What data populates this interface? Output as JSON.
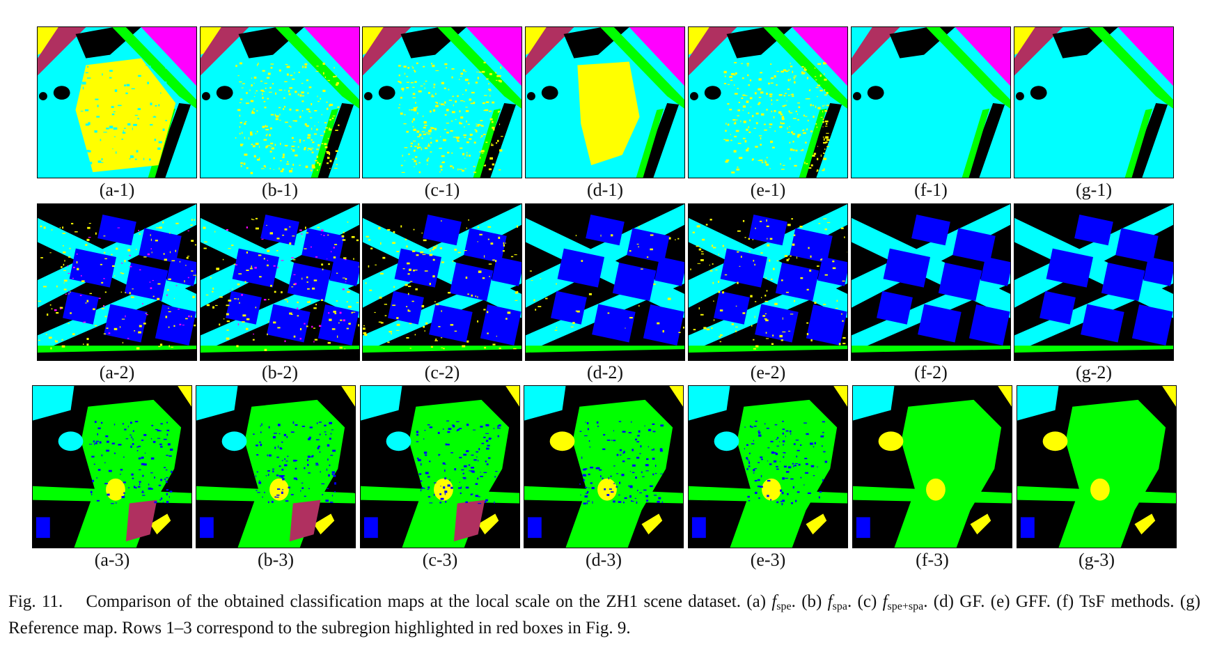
{
  "rows": [
    {
      "panels": [
        "(a-1)",
        "(b-1)",
        "(c-1)",
        "(d-1)",
        "(e-1)",
        "(f-1)",
        "(g-1)"
      ]
    },
    {
      "panels": [
        "(a-2)",
        "(b-2)",
        "(c-2)",
        "(d-2)",
        "(e-2)",
        "(f-2)",
        "(g-2)"
      ]
    },
    {
      "panels": [
        "(a-3)",
        "(b-3)",
        "(c-3)",
        "(d-3)",
        "(e-3)",
        "(f-3)",
        "(g-3)"
      ]
    }
  ],
  "colors": {
    "cyan": "#00ffff",
    "yellow": "#ffff00",
    "magenta": "#ff00ff",
    "green": "#00ff00",
    "blue": "#0000ff",
    "black": "#000000",
    "maroon": "#b03060"
  },
  "caption": {
    "fig_label": "Fig. 11.",
    "intro": "Comparison of the obtained classification maps at the local scale on the ZH1 scene dataset. (a) ",
    "f1": "f",
    "s1": "spe",
    "t1": ". (b) ",
    "f2": "f",
    "s2": "spa",
    "t2": ". (c) ",
    "f3": "f",
    "s3": "spe+spa",
    "t3": ". (d) GF. (e) GFF. (f) TsF methods. (g) Reference map. Rows 1–3 correspond to the subregion highlighted in red boxes in Fig. 9."
  }
}
